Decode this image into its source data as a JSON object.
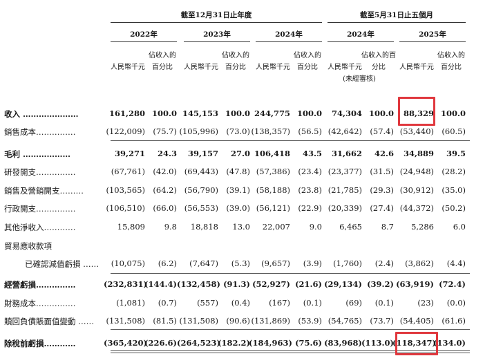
{
  "header": {
    "period_a": "截至12月31日止年度",
    "period_b": "截至5月31日止五個月",
    "years": [
      "2022年",
      "2023年",
      "2024年",
      "2024年",
      "2025年"
    ],
    "unit_label": "人民幣千元",
    "pct_label_a": [
      "佔收入的",
      "百分比"
    ],
    "pct_label_b": [
      "佔收入的百",
      "分比"
    ],
    "pct_label_c": [
      "佔收入的",
      "百分比"
    ],
    "unaudited": "(未經審核)"
  },
  "rows": [
    {
      "label": "收入 …………………",
      "bold": true,
      "values": [
        "161,280",
        "100.0",
        "145,153",
        "100.0",
        "244,775",
        "100.0",
        "74,304",
        "100.0",
        "88,329",
        "100.0"
      ]
    },
    {
      "label": "銷售成本……………",
      "bold": false,
      "values": [
        "(122,009)",
        "(75.7)",
        "(105,996)",
        "(73.0)",
        "(138,357)",
        "(56.5)",
        "(42,642)",
        "(57.4)",
        "(53,440)",
        "(60.5)"
      ]
    },
    {
      "label": "毛利 ………………",
      "bold": true,
      "values": [
        "39,271",
        "24.3",
        "39,157",
        "27.0",
        "106,418",
        "43.5",
        "31,662",
        "42.6",
        "34,889",
        "39.5"
      ]
    },
    {
      "label": "研發開支……………",
      "bold": false,
      "values": [
        "(67,761)",
        "(42.0)",
        "(69,443)",
        "(47.8)",
        "(57,386)",
        "(23.4)",
        "(23,377)",
        "(31.5)",
        "(24,948)",
        "(28.2)"
      ]
    },
    {
      "label": "銷售及營銷開支………",
      "bold": false,
      "values": [
        "(103,565)",
        "(64.2)",
        "(56,790)",
        "(39.1)",
        "(58,188)",
        "(23.8)",
        "(21,785)",
        "(29.3)",
        "(30,912)",
        "(35.0)"
      ]
    },
    {
      "label": "行政開支……………",
      "bold": false,
      "values": [
        "(106,510)",
        "(66.0)",
        "(56,553)",
        "(39.0)",
        "(56,121)",
        "(22.9)",
        "(20,339)",
        "(27.4)",
        "(44,372)",
        "(50.2)"
      ]
    },
    {
      "label": "其他淨收入…………",
      "bold": false,
      "values": [
        "15,809",
        "9.8",
        "18,818",
        "13.0",
        "22,007",
        "9.0",
        "6,465",
        "8.7",
        "5,286",
        "6.0"
      ]
    },
    {
      "label": "貿易應收款項",
      "bold": false,
      "values": [
        "",
        "",
        "",
        "",
        "",
        "",
        "",
        "",
        "",
        ""
      ]
    },
    {
      "label": "已確認減值虧損 ……",
      "bold": false,
      "indent": true,
      "values": [
        "(10,075)",
        "(6.2)",
        "(7,647)",
        "(5.3)",
        "(9,657)",
        "(3.9)",
        "(1,760)",
        "(2.4)",
        "(3,862)",
        "(4.4)"
      ]
    },
    {
      "label": "經營虧損……………",
      "bold": true,
      "values": [
        "(232,831)",
        "(144.4)",
        "(132,458)",
        "(91.3)",
        "(52,927)",
        "(21.6)",
        "(29,134)",
        "(39.2)",
        "(63,919)",
        "(72.4)"
      ]
    },
    {
      "label": "財務成本……………",
      "bold": false,
      "values": [
        "(1,081)",
        "(0.7)",
        "(557)",
        "(0.4)",
        "(167)",
        "(0.1)",
        "(69)",
        "(0.1)",
        "(23)",
        "(0.0)"
      ]
    },
    {
      "label": "贖回負債賬面值變動 ……",
      "bold": false,
      "values": [
        "(131,508)",
        "(81.5)",
        "(131,508)",
        "(90.6)",
        "(131,869)",
        "(53.9)",
        "(54,765)",
        "(73.7)",
        "(54,405)",
        "(61.6)"
      ]
    },
    {
      "label": "除稅前虧損…………",
      "bold": true,
      "values": [
        "(365,420)",
        "(226.6)",
        "(264,523)",
        "(182.2)",
        "(184,963)",
        "(75.6)",
        "(83,968)",
        "(113.0)",
        "(118,347)",
        "(134.0)"
      ]
    }
  ],
  "highlight_color": "#e0383e"
}
